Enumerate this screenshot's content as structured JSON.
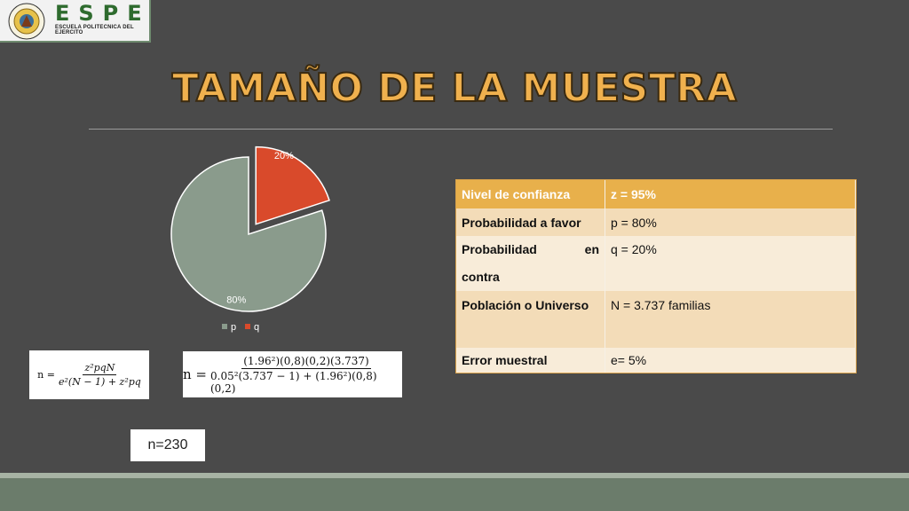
{
  "header": {
    "brand_name": "ESPE",
    "brand_subtitle": "ESCUELA POLITECNICA DEL EJERCITO",
    "seal_icon": "espe-seal-icon"
  },
  "slide": {
    "title": "TAMAÑO DE LA MUESTRA"
  },
  "chart_data": {
    "type": "pie",
    "categories": [
      "p",
      "q"
    ],
    "values": [
      80,
      20
    ],
    "data_labels": [
      "80%",
      "20%"
    ],
    "colors": [
      "#8a9b8c",
      "#d94a2b"
    ],
    "exploded": [
      "q"
    ],
    "legend_placement": "bottom"
  },
  "table": {
    "header": {
      "key": "Nivel de confianza",
      "value": "z = 95%"
    },
    "rows": [
      {
        "key": "Probabilidad a favor",
        "value": "p = 80%"
      },
      {
        "key_a": "Probabilidad",
        "key_b": "en",
        "key_c": "contra",
        "value": "q = 20%"
      },
      {
        "key": "Población o Universo",
        "value": "N = 3.737 familias"
      },
      {
        "key": "Error muestral",
        "value": "e= 5%"
      }
    ]
  },
  "formulas": {
    "general": {
      "lhs": "n =",
      "numerator": "z²pqN",
      "denominator": "e²(N − 1) + z²pq"
    },
    "applied": {
      "lhs": "n =",
      "numerator": "(1.96²)(0,8)(0,2)(3.737)",
      "denominator": "0.05²(3.737 − 1) + (1.96²)(0,8)(0,2)"
    }
  },
  "result": "n=230"
}
